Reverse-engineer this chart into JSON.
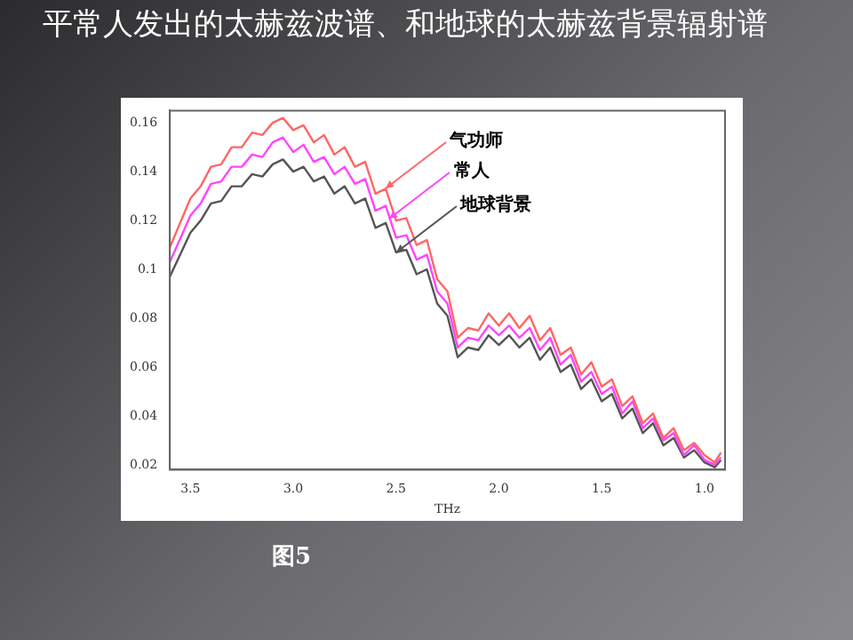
{
  "chart_data": {
    "type": "line",
    "title": "平常人发出的太赫兹波谱、和地球的太赫兹背景辐射谱",
    "xlabel": "THz",
    "x": [
      3.6,
      3.5,
      3.45,
      3.4,
      3.35,
      3.3,
      3.25,
      3.2,
      3.15,
      3.1,
      3.05,
      3.0,
      2.95,
      2.9,
      2.85,
      2.8,
      2.75,
      2.7,
      2.65,
      2.6,
      2.55,
      2.5,
      2.45,
      2.4,
      2.35,
      2.3,
      2.25,
      2.2,
      2.15,
      2.1,
      2.05,
      2.0,
      1.95,
      1.9,
      1.85,
      1.8,
      1.75,
      1.7,
      1.65,
      1.6,
      1.55,
      1.5,
      1.45,
      1.4,
      1.35,
      1.3,
      1.25,
      1.2,
      1.15,
      1.1,
      1.05,
      1.0,
      0.95,
      0.92
    ],
    "series": [
      {
        "color": "#ff6666",
        "values": [
          0.109,
          0.129,
          0.134,
          0.142,
          0.143,
          0.15,
          0.15,
          0.156,
          0.155,
          0.16,
          0.162,
          0.157,
          0.159,
          0.152,
          0.155,
          0.147,
          0.15,
          0.142,
          0.144,
          0.131,
          0.133,
          0.12,
          0.121,
          0.11,
          0.112,
          0.096,
          0.091,
          0.072,
          0.076,
          0.075,
          0.082,
          0.077,
          0.082,
          0.076,
          0.081,
          0.071,
          0.076,
          0.065,
          0.068,
          0.057,
          0.062,
          0.052,
          0.055,
          0.044,
          0.048,
          0.037,
          0.041,
          0.031,
          0.035,
          0.026,
          0.029,
          0.024,
          0.021,
          0.025
        ]
      },
      {
        "color": "#ff44ff",
        "values": [
          0.103,
          0.122,
          0.127,
          0.135,
          0.136,
          0.142,
          0.142,
          0.147,
          0.146,
          0.152,
          0.154,
          0.148,
          0.151,
          0.144,
          0.146,
          0.139,
          0.142,
          0.135,
          0.137,
          0.124,
          0.126,
          0.113,
          0.114,
          0.104,
          0.106,
          0.091,
          0.086,
          0.068,
          0.072,
          0.071,
          0.077,
          0.073,
          0.077,
          0.072,
          0.076,
          0.067,
          0.072,
          0.061,
          0.065,
          0.054,
          0.058,
          0.049,
          0.052,
          0.041,
          0.046,
          0.035,
          0.039,
          0.03,
          0.033,
          0.024,
          0.028,
          0.022,
          0.02,
          0.023
        ]
      },
      {
        "color": "#555555",
        "values": [
          0.097,
          0.115,
          0.12,
          0.127,
          0.128,
          0.134,
          0.134,
          0.139,
          0.138,
          0.143,
          0.145,
          0.14,
          0.142,
          0.136,
          0.138,
          0.131,
          0.134,
          0.127,
          0.129,
          0.117,
          0.119,
          0.107,
          0.108,
          0.098,
          0.1,
          0.086,
          0.081,
          0.064,
          0.068,
          0.067,
          0.073,
          0.069,
          0.073,
          0.068,
          0.072,
          0.063,
          0.068,
          0.058,
          0.061,
          0.051,
          0.055,
          0.046,
          0.049,
          0.039,
          0.043,
          0.033,
          0.037,
          0.028,
          0.031,
          0.023,
          0.026,
          0.021,
          0.019,
          0.022
        ]
      }
    ],
    "xlim": [
      3.6,
      0.9
    ],
    "xticks": [
      3.5,
      {
        "value": 3,
        "label": "3.0"
      },
      2.5,
      {
        "value": 2,
        "label": "2.0"
      },
      1.5,
      {
        "value": 1,
        "label": "1.0"
      }
    ],
    "ylim": [
      0.018,
      0.165
    ],
    "yticks": [
      0.02,
      0.04,
      0.06,
      0.08,
      0.1,
      0.12,
      0.14,
      0.16
    ],
    "annotations": [
      {
        "text": "气功师",
        "x": 2.55,
        "y": 0.133
      },
      {
        "text": "常人",
        "x": 2.53,
        "y": 0.121
      },
      {
        "text": "地球背景",
        "x": 2.5,
        "y": 0.107
      },
      "图5"
    ],
    "grid": false,
    "legend": false,
    "marker": "none",
    "line_style": "solid"
  }
}
